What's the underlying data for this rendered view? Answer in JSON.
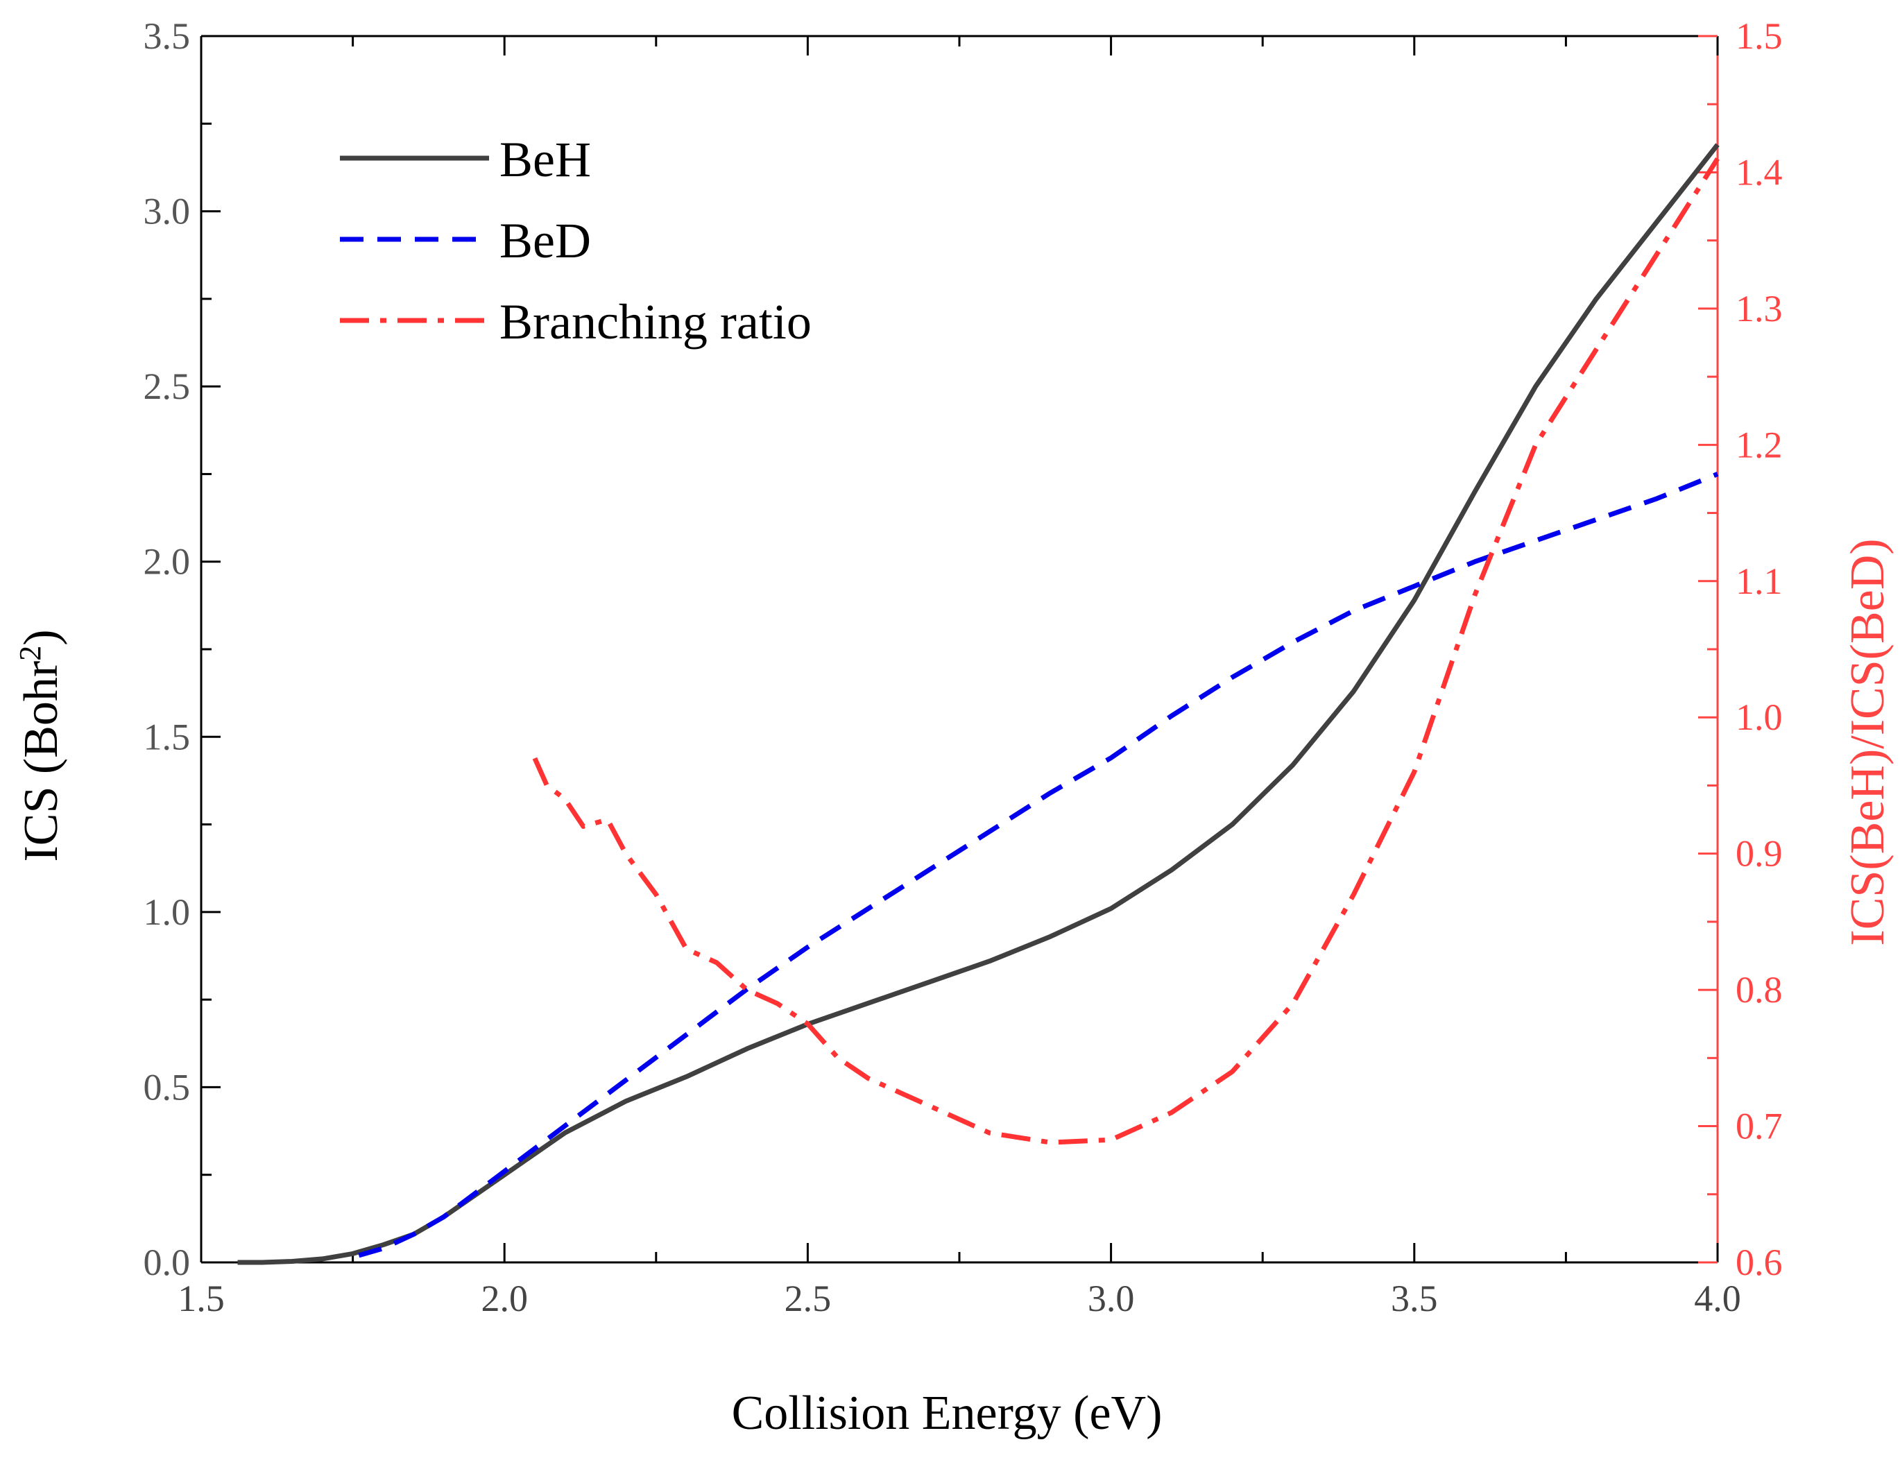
{
  "chart_data": {
    "type": "line",
    "x_axis": {
      "label": "Collision Energy (eV)",
      "range": [
        1.5,
        4.0
      ],
      "ticks": [
        1.5,
        2.0,
        2.5,
        3.0,
        3.5,
        4.0
      ],
      "tick_labels": [
        "1.5",
        "2.0",
        "2.5",
        "3.0",
        "3.5",
        "4.0"
      ]
    },
    "y_axis_left": {
      "label_main": "ICS (Bohr",
      "label_sup": "2",
      "label_end": ")",
      "range": [
        0.0,
        3.5
      ],
      "ticks": [
        0.0,
        0.5,
        1.0,
        1.5,
        2.0,
        2.5,
        3.0,
        3.5
      ],
      "tick_labels": [
        "0.0",
        "0.5",
        "1.0",
        "1.5",
        "2.0",
        "2.5",
        "3.0",
        "3.5"
      ],
      "color": "#555555"
    },
    "y_axis_right": {
      "label": "ICS(BeH)/ICS(BeD)",
      "range": [
        0.6,
        1.5
      ],
      "ticks": [
        0.6,
        0.7,
        0.8,
        0.9,
        1.0,
        1.1,
        1.2,
        1.3,
        1.4,
        1.5
      ],
      "tick_labels": [
        "0.6",
        "0.7",
        "0.8",
        "0.9",
        "1.0",
        "1.1",
        "1.2",
        "1.3",
        "1.4",
        "1.5"
      ],
      "color": "#ff4444"
    },
    "legend": [
      "BeH",
      "BeD",
      "Branching ratio"
    ],
    "series": [
      {
        "name": "BeH",
        "axis": "left",
        "color": "#404040",
        "style": "solid",
        "x": [
          1.56,
          1.6,
          1.65,
          1.7,
          1.75,
          1.8,
          1.85,
          1.9,
          2.0,
          2.1,
          2.2,
          2.3,
          2.4,
          2.5,
          2.6,
          2.7,
          2.8,
          2.9,
          3.0,
          3.1,
          3.2,
          3.3,
          3.4,
          3.5,
          3.6,
          3.7,
          3.8,
          3.9,
          4.0
        ],
        "values": [
          0.0,
          0.0,
          0.003,
          0.01,
          0.025,
          0.05,
          0.08,
          0.13,
          0.25,
          0.37,
          0.46,
          0.53,
          0.61,
          0.68,
          0.74,
          0.8,
          0.86,
          0.93,
          1.01,
          1.12,
          1.25,
          1.42,
          1.63,
          1.89,
          2.2,
          2.5,
          2.75,
          2.97,
          3.19
        ]
      },
      {
        "name": "BeD",
        "axis": "left",
        "color": "#0000ee",
        "style": "dashed",
        "x": [
          1.76,
          1.8,
          1.85,
          1.9,
          2.0,
          2.1,
          2.2,
          2.3,
          2.4,
          2.5,
          2.6,
          2.7,
          2.8,
          2.9,
          3.0,
          3.1,
          3.2,
          3.3,
          3.4,
          3.5,
          3.6,
          3.7,
          3.8,
          3.9,
          4.0
        ],
        "values": [
          0.02,
          0.04,
          0.08,
          0.13,
          0.26,
          0.39,
          0.52,
          0.65,
          0.78,
          0.9,
          1.01,
          1.12,
          1.23,
          1.34,
          1.44,
          1.56,
          1.67,
          1.77,
          1.86,
          1.93,
          2.0,
          2.06,
          2.12,
          2.18,
          2.25
        ]
      },
      {
        "name": "Branching ratio",
        "axis": "right",
        "color": "#ff3333",
        "style": "dashdot",
        "x": [
          2.05,
          2.07,
          2.1,
          2.13,
          2.17,
          2.2,
          2.25,
          2.3,
          2.35,
          2.4,
          2.45,
          2.5,
          2.55,
          2.6,
          2.65,
          2.7,
          2.8,
          2.9,
          3.0,
          3.1,
          3.2,
          3.3,
          3.4,
          3.5,
          3.6,
          3.7,
          3.8,
          3.9,
          4.0
        ],
        "values": [
          0.97,
          0.95,
          0.94,
          0.92,
          0.925,
          0.9,
          0.87,
          0.83,
          0.82,
          0.8,
          0.79,
          0.775,
          0.75,
          0.735,
          0.725,
          0.715,
          0.695,
          0.688,
          0.69,
          0.71,
          0.74,
          0.79,
          0.87,
          0.96,
          1.09,
          1.2,
          1.27,
          1.34,
          1.41
        ]
      }
    ]
  }
}
